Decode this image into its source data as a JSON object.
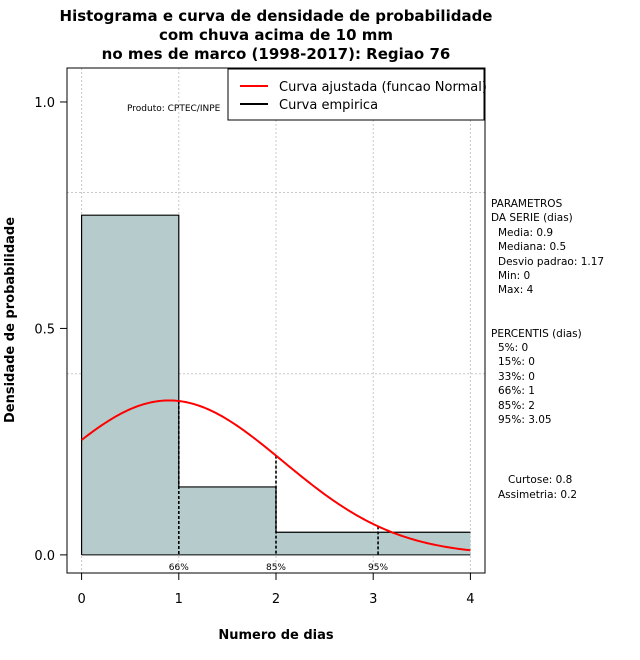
{
  "chart_data": {
    "type": "bar",
    "title_lines": [
      "Histograma e curva de densidade de probabilidade",
      "com chuva acima de 10 mm",
      "no mes de marco (1998-2017): Regiao 76"
    ],
    "xlabel": "Numero de dias",
    "ylabel": "Densidade de probabilidade",
    "xlim": [
      -0.15,
      4.15
    ],
    "ylim": [
      -0.04,
      1.075
    ],
    "xticks": [
      "0",
      "1",
      "2",
      "3",
      "4"
    ],
    "yticks": [
      "0.0",
      "0.5",
      "1.0"
    ],
    "grid": true,
    "bins": [
      {
        "from": 0,
        "to": 1,
        "value": 0.75
      },
      {
        "from": 1,
        "to": 2,
        "value": 0.15
      },
      {
        "from": 2,
        "to": 3,
        "value": 0.05
      },
      {
        "from": 3,
        "to": 4,
        "value": 0.05
      }
    ],
    "normal_fit": {
      "name": "Curva ajustada (funcao Normal)",
      "mean": 0.9,
      "sd": 1.17,
      "color": "#ff0000"
    },
    "empirical": {
      "name": "Curva empirica",
      "color": "#000000"
    },
    "percentile_markers": [
      {
        "x": 1,
        "label": "66%"
      },
      {
        "x": 2,
        "label": "85%"
      },
      {
        "x": 3.05,
        "label": "95%"
      }
    ],
    "product_note": "Produto: CPTEC/INPE",
    "bar_color": "#b6cccc",
    "parametros": {
      "header": [
        "PARAMETROS",
        "DA SERIE (dias)"
      ],
      "items": [
        "Media: 0.9",
        "Mediana: 0.5",
        "Desvio padrao: 1.17",
        "Min: 0",
        "Max: 4"
      ]
    },
    "percentis": {
      "header": "PERCENTIS (dias)",
      "items": [
        "5%: 0",
        "15%: 0",
        "33%: 0",
        "66%: 1",
        "85%: 2",
        "95%: 3.05"
      ]
    },
    "shape": [
      "Curtose: 0.8",
      "Assimetria: 0.2"
    ]
  }
}
